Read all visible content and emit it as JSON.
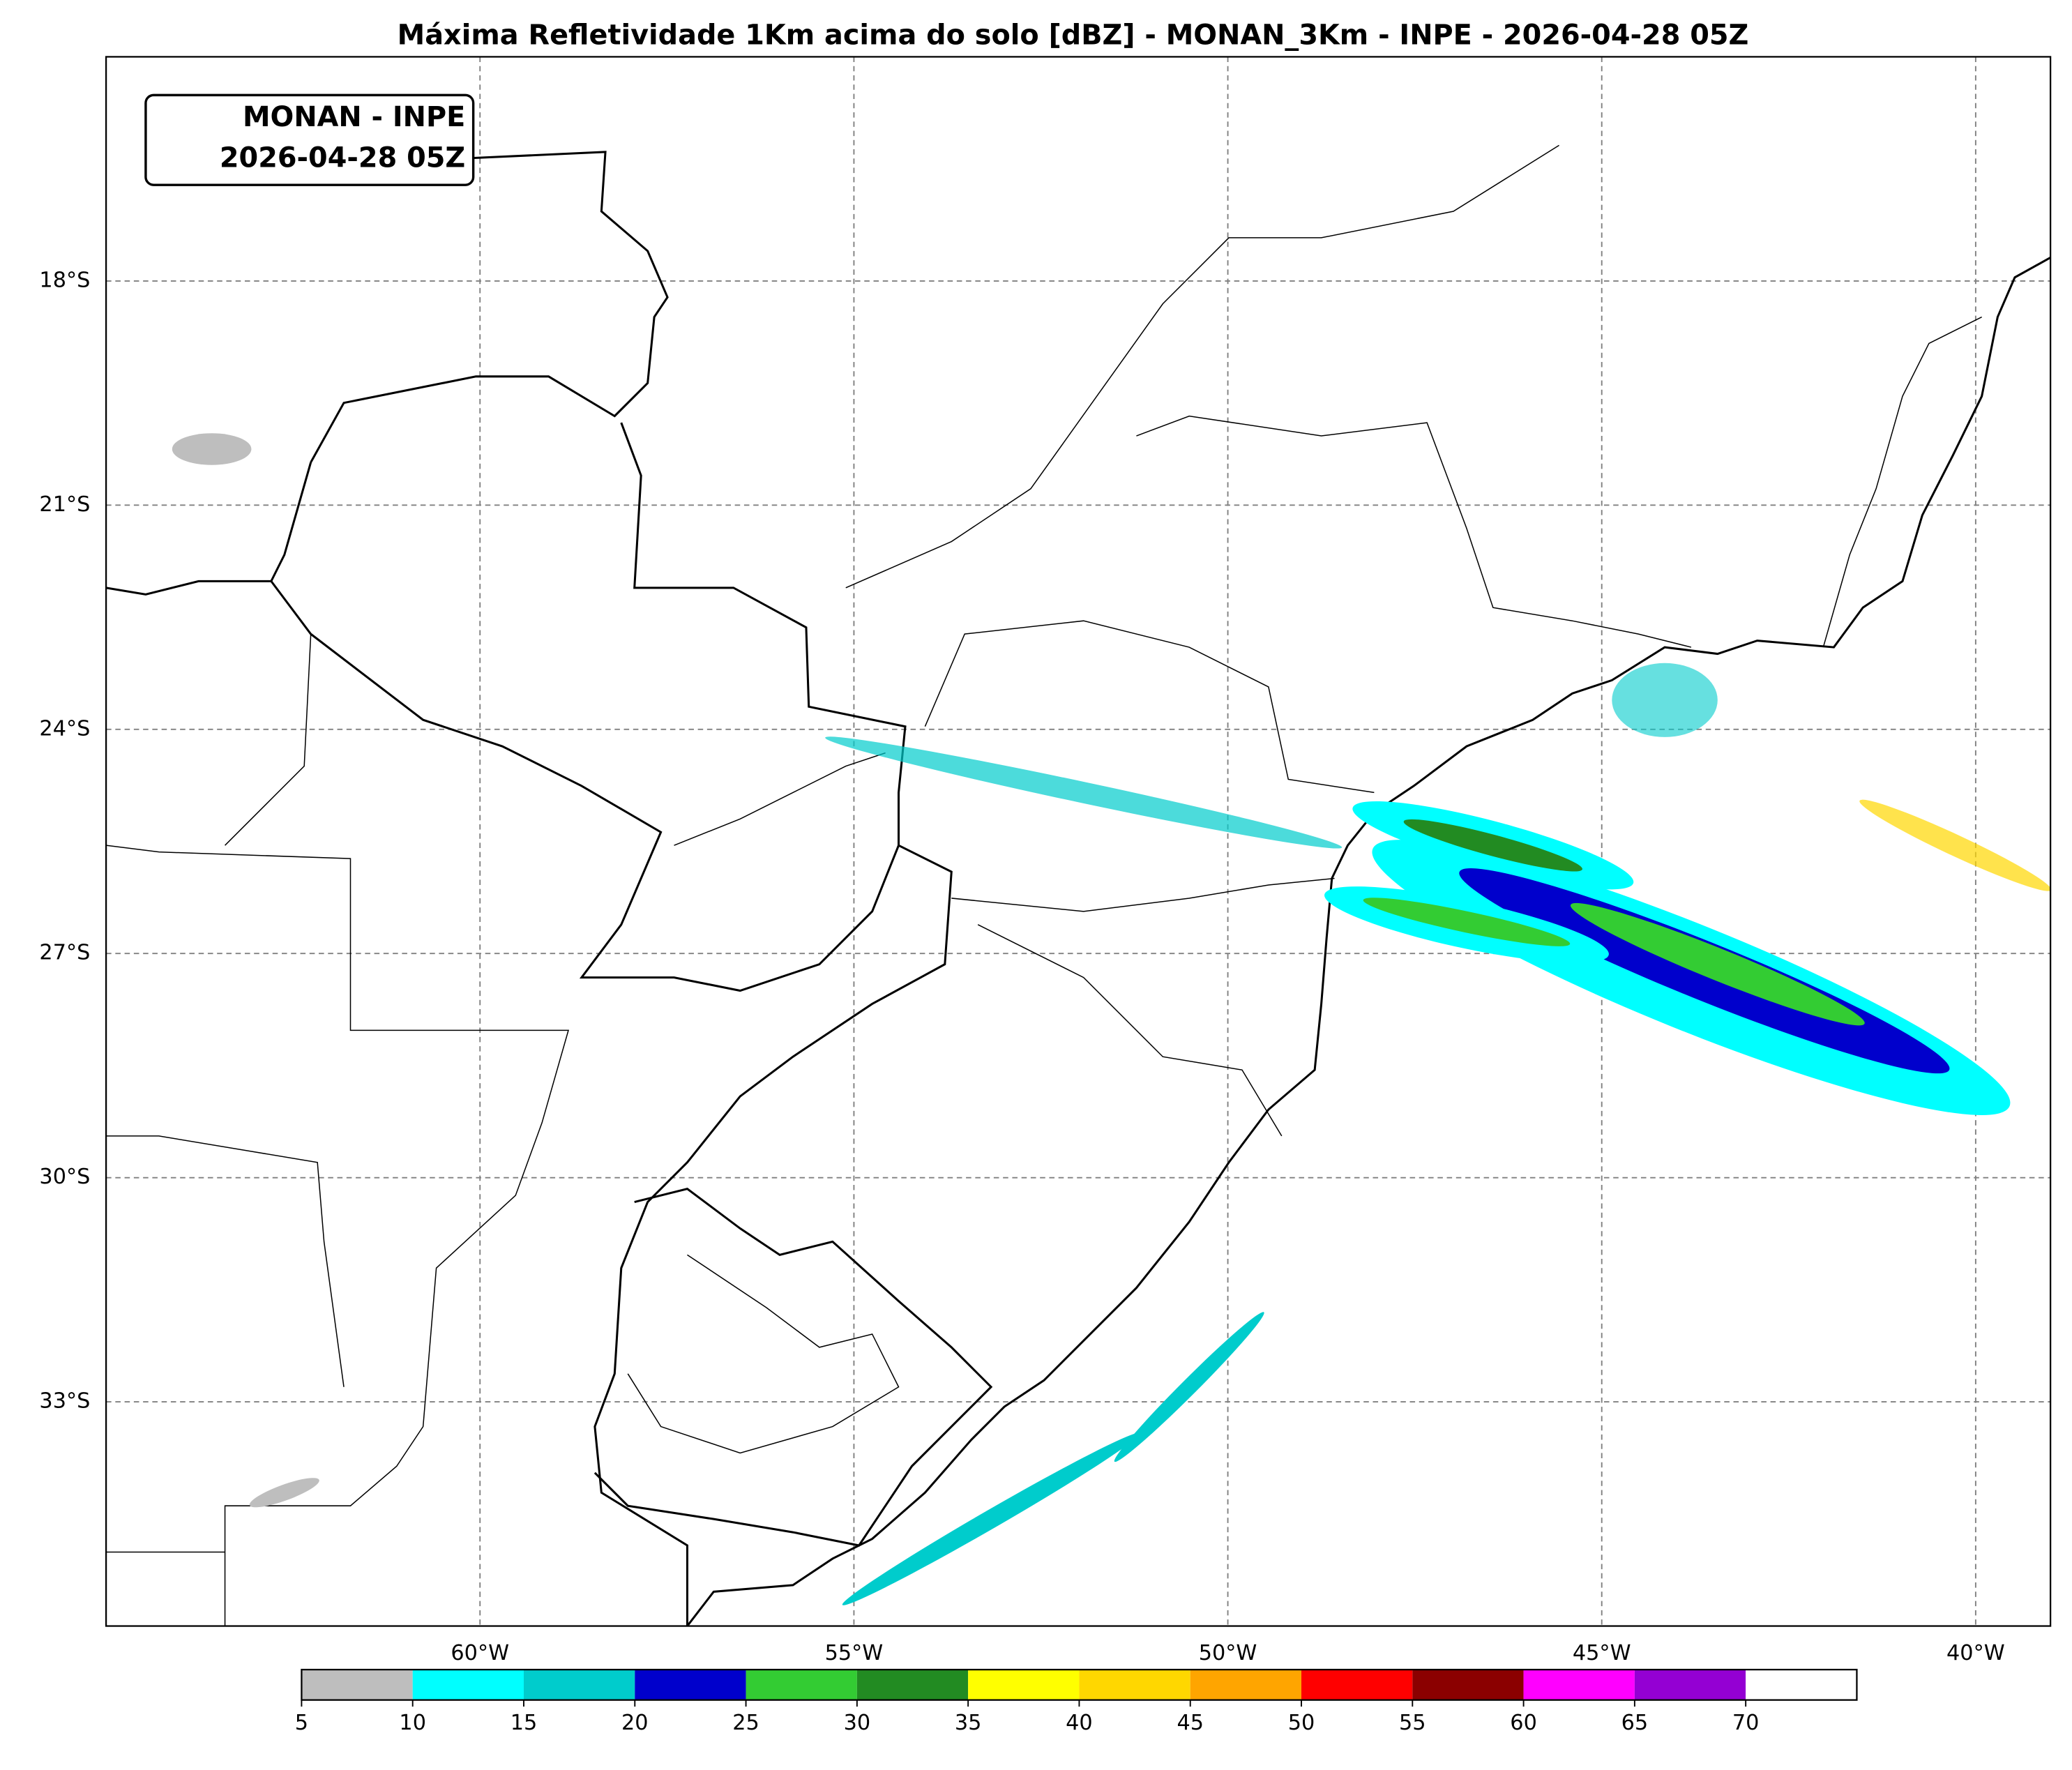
{
  "title": "Máxima Refletividade 1Km acima do solo [dBZ] - MONAN_3Km - INPE - 2026-04-28 05Z",
  "annotation": [
    "MONAN - INPE",
    "2026-04-28 05Z"
  ],
  "xlim": [
    -65,
    -39
  ],
  "ylim": [
    -36,
    -15
  ],
  "lat_ticks": [
    {
      "value": -18,
      "label": "18°S"
    },
    {
      "value": -21,
      "label": "21°S"
    },
    {
      "value": -24,
      "label": "24°S"
    },
    {
      "value": -27,
      "label": "27°S"
    },
    {
      "value": -30,
      "label": "30°S"
    },
    {
      "value": -33,
      "label": "33°S"
    }
  ],
  "lon_ticks": [
    {
      "value": -60,
      "label": "60°W"
    },
    {
      "value": -55,
      "label": "55°W"
    },
    {
      "value": -50,
      "label": "50°W"
    },
    {
      "value": -45,
      "label": "45°W"
    },
    {
      "value": -40,
      "label": "40°W"
    }
  ],
  "grid": true,
  "colorbar": {
    "levels": [
      5,
      10,
      15,
      20,
      25,
      30,
      35,
      40,
      45,
      50,
      55,
      60,
      65,
      70
    ],
    "colors": [
      "#bebebe",
      "#00ffff",
      "#00cccc",
      "#0000cc",
      "#33cc33",
      "#228b22",
      "#ffff00",
      "#ffd700",
      "#ffa500",
      "#ff0000",
      "#8b0000",
      "#ff00ff",
      "#9400d3"
    ],
    "extend_color": "#ffffff"
  }
}
